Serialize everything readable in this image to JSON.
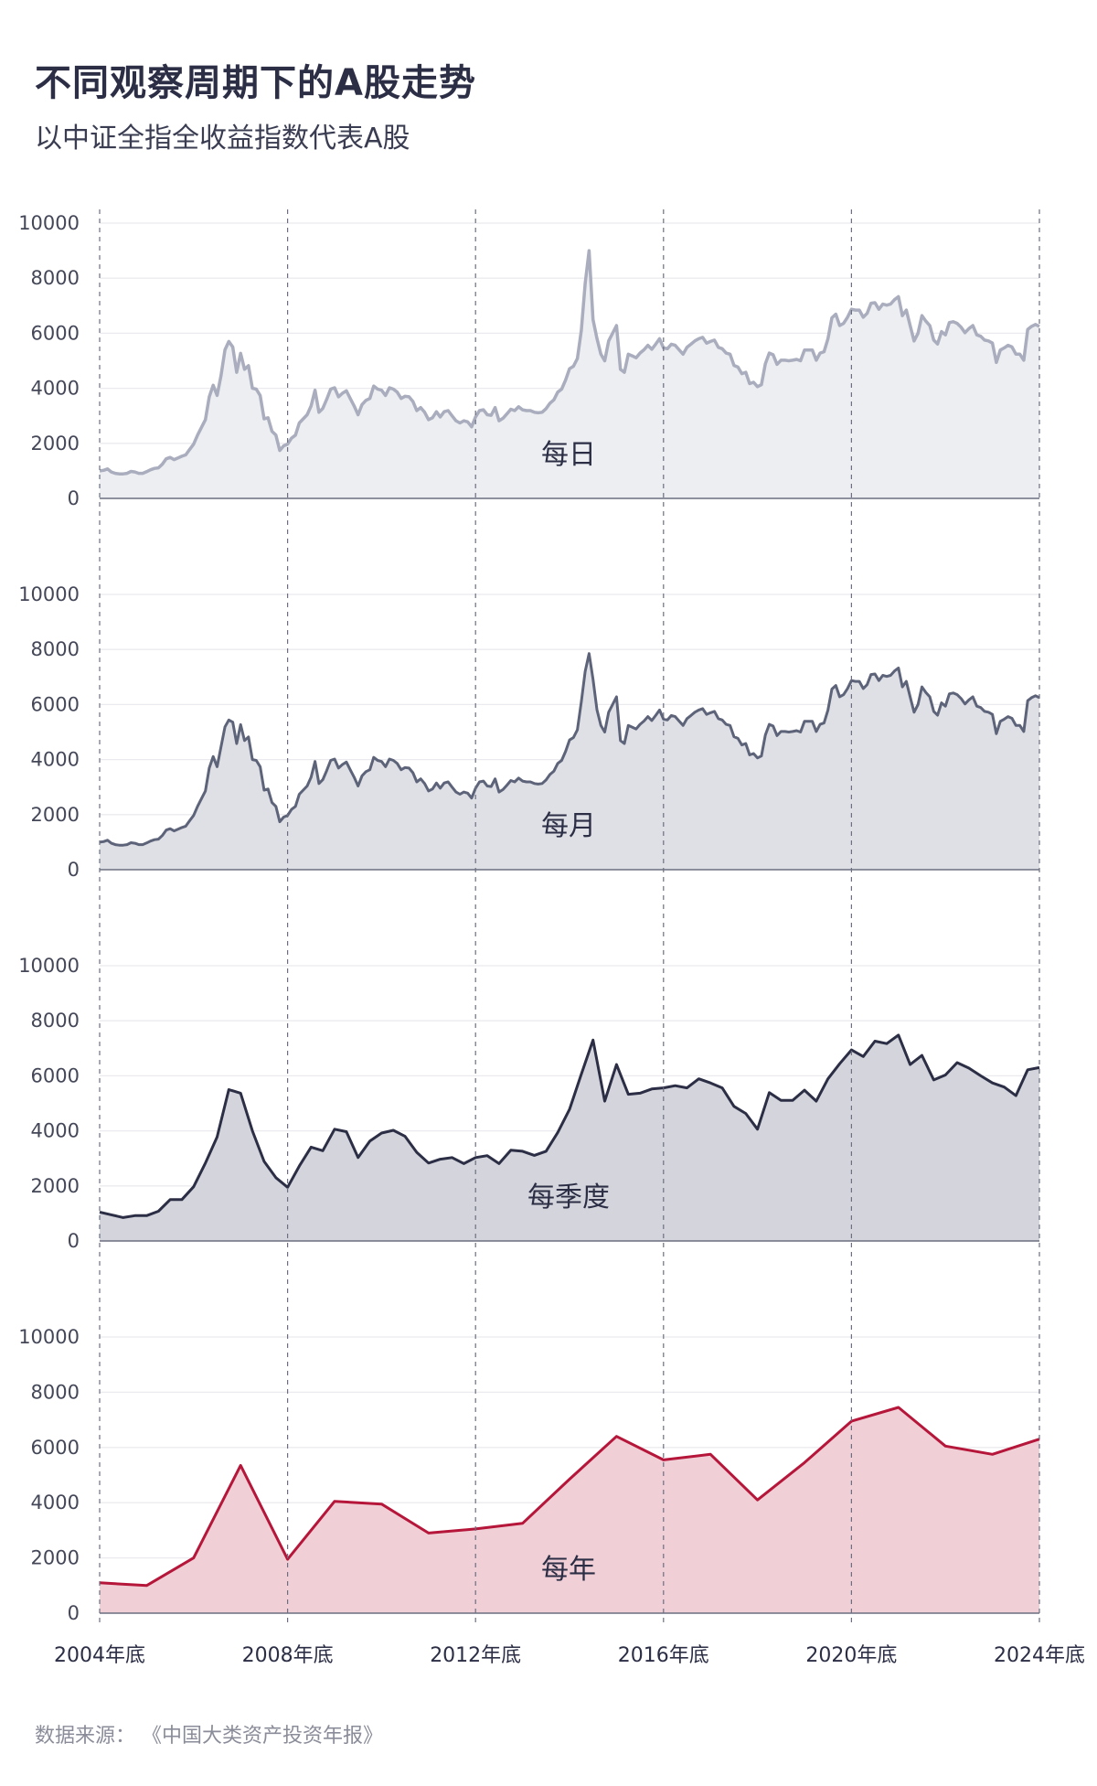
{
  "title": "不同观察周期下的A股走势",
  "subtitle": "以中证全指全收益指数代表A股",
  "source": "数据来源：  《中国大类资产投资年报》",
  "chart_data": {
    "type": "area",
    "x_tick_labels": [
      "2004年底",
      "2008年底",
      "2012年底",
      "2016年底",
      "2020年底",
      "2024年底"
    ],
    "x_range": [
      "2004年底",
      "2024年底"
    ],
    "ylim": [
      0,
      10000
    ],
    "y_ticks": [
      0,
      2000,
      4000,
      6000,
      8000,
      10000
    ],
    "grid": true,
    "panels": [
      {
        "label": "每日",
        "frequency": "daily",
        "line_color": "#a9adbd",
        "fill_color": "#eceef2",
        "values": [
          1000,
          1020,
          1070,
          960,
          910,
          890,
          890,
          910,
          980,
          960,
          910,
          910,
          970,
          1040,
          1090,
          1110,
          1240,
          1440,
          1490,
          1410,
          1470,
          1530,
          1580,
          1780,
          1970,
          2300,
          2580,
          2860,
          3690,
          4110,
          3740,
          4470,
          5400,
          5700,
          5500,
          4580,
          5270,
          4690,
          4820,
          4000,
          3970,
          3740,
          2890,
          2930,
          2440,
          2300,
          1740,
          1910,
          1970,
          2190,
          2300,
          2740,
          2890,
          3040,
          3360,
          3930,
          3130,
          3270,
          3600,
          3970,
          4020,
          3690,
          3820,
          3910,
          3630,
          3360,
          3040,
          3410,
          3560,
          3630,
          4080,
          3970,
          3930,
          3740,
          4020,
          3970,
          3860,
          3630,
          3710,
          3690,
          3520,
          3190,
          3300,
          3130,
          2860,
          2930,
          3150,
          2960,
          3150,
          3190,
          3000,
          2820,
          2740,
          2820,
          2780,
          2600,
          2960,
          3190,
          3220,
          3040,
          3020,
          3300,
          2820,
          2910,
          3070,
          3240,
          3190,
          3330,
          3220,
          3190,
          3190,
          3130,
          3110,
          3130,
          3260,
          3460,
          3580,
          3860,
          3970,
          4300,
          4710,
          4800,
          5080,
          6100,
          7800,
          9000,
          6500,
          5810,
          5240,
          5000,
          5720,
          6000,
          6280,
          4690,
          4580,
          5240,
          5180,
          5110,
          5280,
          5400,
          5560,
          5420,
          5600,
          5800,
          5470,
          5440,
          5600,
          5560,
          5400,
          5240,
          5490,
          5600,
          5720,
          5800,
          5850,
          5640,
          5700,
          5750,
          5490,
          5440,
          5280,
          5240,
          4830,
          4770,
          4530,
          4580,
          4170,
          4220,
          4060,
          4130,
          4890,
          5280,
          5220,
          4870,
          5020,
          5020,
          5000,
          5020,
          5050,
          5000,
          5390,
          5390,
          5390,
          5020,
          5280,
          5330,
          5800,
          6560,
          6690,
          6280,
          6360,
          6580,
          6870,
          6840,
          6840,
          6580,
          6720,
          7090,
          7110,
          6870,
          7060,
          7020,
          7060,
          7220,
          7330,
          6640,
          6840,
          6280,
          5720,
          6000,
          6640,
          6440,
          6280,
          5750,
          5610,
          6060,
          5940,
          6390,
          6420,
          6360,
          6220,
          6020,
          6170,
          6280,
          5940,
          5890,
          5750,
          5720,
          5640,
          4940,
          5390,
          5470,
          5560,
          5500,
          5240,
          5240,
          5020,
          6140,
          6250,
          6320,
          6250
        ]
      },
      {
        "label": "每月",
        "frequency": "monthly",
        "line_color": "#5d6379",
        "fill_color": "#dfe0e6",
        "values": [
          1000,
          1020,
          1070,
          960,
          910,
          890,
          890,
          910,
          980,
          960,
          910,
          910,
          970,
          1040,
          1090,
          1110,
          1240,
          1440,
          1490,
          1410,
          1470,
          1530,
          1580,
          1780,
          1970,
          2300,
          2580,
          2860,
          3690,
          4110,
          3740,
          4470,
          5190,
          5440,
          5360,
          4580,
          5270,
          4690,
          4820,
          4000,
          3970,
          3740,
          2890,
          2930,
          2440,
          2300,
          1740,
          1910,
          1970,
          2190,
          2300,
          2740,
          2890,
          3040,
          3360,
          3930,
          3130,
          3270,
          3600,
          3970,
          4020,
          3690,
          3820,
          3910,
          3630,
          3360,
          3040,
          3410,
          3560,
          3630,
          4080,
          3970,
          3930,
          3740,
          4020,
          3970,
          3860,
          3630,
          3710,
          3690,
          3520,
          3190,
          3300,
          3130,
          2860,
          2930,
          3150,
          2960,
          3150,
          3190,
          3000,
          2820,
          2740,
          2820,
          2780,
          2600,
          2960,
          3190,
          3220,
          3040,
          3020,
          3300,
          2820,
          2910,
          3070,
          3240,
          3190,
          3330,
          3220,
          3190,
          3190,
          3130,
          3110,
          3130,
          3260,
          3460,
          3580,
          3860,
          3970,
          4300,
          4710,
          4800,
          5080,
          6100,
          7200,
          7850,
          6920,
          5810,
          5240,
          5000,
          5720,
          6000,
          6280,
          4690,
          4580,
          5240,
          5180,
          5110,
          5280,
          5400,
          5560,
          5420,
          5600,
          5800,
          5470,
          5440,
          5600,
          5560,
          5400,
          5240,
          5490,
          5600,
          5720,
          5800,
          5850,
          5640,
          5700,
          5750,
          5490,
          5440,
          5280,
          5240,
          4830,
          4770,
          4530,
          4580,
          4170,
          4220,
          4060,
          4130,
          4890,
          5280,
          5220,
          4870,
          5020,
          5020,
          5000,
          5020,
          5050,
          5000,
          5390,
          5390,
          5390,
          5020,
          5280,
          5330,
          5800,
          6560,
          6690,
          6280,
          6360,
          6580,
          6870,
          6840,
          6840,
          6580,
          6720,
          7090,
          7110,
          6870,
          7060,
          7020,
          7060,
          7220,
          7330,
          6640,
          6840,
          6280,
          5720,
          6000,
          6640,
          6440,
          6280,
          5750,
          5610,
          6060,
          5940,
          6390,
          6420,
          6360,
          6220,
          6020,
          6170,
          6280,
          5940,
          5890,
          5750,
          5720,
          5640,
          4940,
          5390,
          5470,
          5560,
          5500,
          5240,
          5240,
          5020,
          6140,
          6250,
          6320,
          6250
        ]
      },
      {
        "label": "每季度",
        "frequency": "quarterly",
        "line_color": "#2b2e45",
        "fill_color": "#d4d5dc",
        "values": [
          1050,
          950,
          850,
          920,
          920,
          1080,
          1500,
          1500,
          1970,
          2830,
          3780,
          5500,
          5370,
          4000,
          2890,
          2300,
          1950,
          2720,
          3410,
          3280,
          4060,
          3970,
          3030,
          3630,
          3920,
          4020,
          3800,
          3220,
          2830,
          2970,
          3030,
          2810,
          3030,
          3100,
          2810,
          3300,
          3260,
          3110,
          3260,
          3940,
          4780,
          6060,
          7300,
          5080,
          6410,
          5330,
          5370,
          5520,
          5560,
          5640,
          5560,
          5890,
          5740,
          5560,
          4890,
          4630,
          4060,
          5390,
          5110,
          5110,
          5480,
          5080,
          5890,
          6440,
          6940,
          6700,
          7260,
          7170,
          7480,
          6410,
          6740,
          5850,
          6030,
          6480,
          6280,
          6000,
          5740,
          5590,
          5280,
          6220,
          6300
        ]
      },
      {
        "label": "每年",
        "frequency": "yearly",
        "line_color": "#b5163a",
        "fill_color": "#f0d0d6",
        "values": [
          1100,
          1000,
          2000,
          5350,
          1950,
          4050,
          3950,
          2900,
          3050,
          3250,
          4850,
          6400,
          5550,
          5750,
          4100,
          5450,
          6950,
          7450,
          6050,
          5750,
          6300
        ]
      }
    ]
  }
}
